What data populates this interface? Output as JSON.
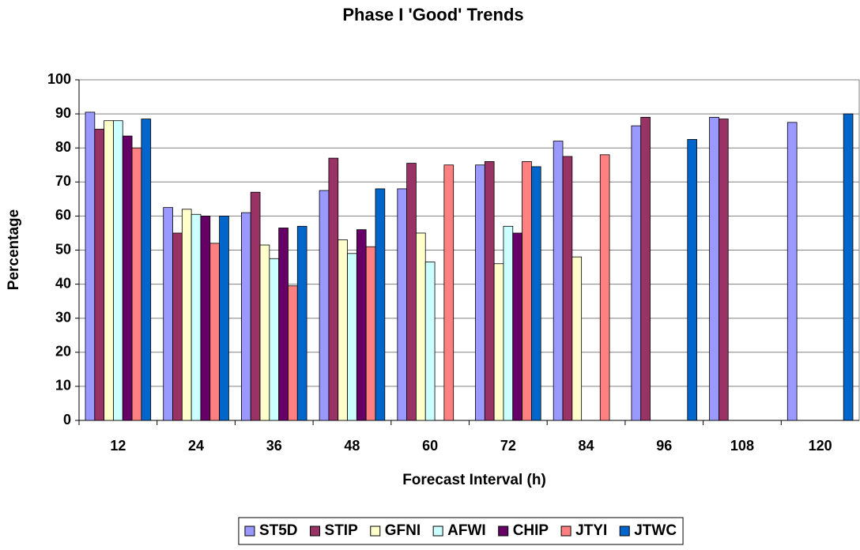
{
  "chart_data": {
    "type": "bar",
    "title": "Phase I 'Good' Trends",
    "x_label": "Forecast Interval (h)",
    "y_label": "Percentage",
    "categories": [
      "12",
      "24",
      "36",
      "48",
      "60",
      "72",
      "84",
      "96",
      "108",
      "120"
    ],
    "series": [
      {
        "name": "ST5D",
        "color": "#9999ff",
        "values": [
          90.5,
          62.5,
          61,
          67.5,
          68,
          75,
          82,
          86.5,
          89,
          87.5
        ]
      },
      {
        "name": "STIP",
        "color": "#993366",
        "values": [
          85.5,
          55,
          67,
          77,
          75.5,
          76,
          77.5,
          89,
          88.5,
          null
        ]
      },
      {
        "name": "GFNI",
        "color": "#ffffcc",
        "values": [
          88,
          62,
          51.5,
          53,
          55,
          46,
          48,
          null,
          null,
          null
        ]
      },
      {
        "name": "AFWI",
        "color": "#ccffff",
        "values": [
          88,
          60.5,
          47.5,
          49,
          46.5,
          57,
          null,
          null,
          null,
          null
        ]
      },
      {
        "name": "CHIP",
        "color": "#660066",
        "values": [
          83.5,
          60,
          56.5,
          56,
          null,
          55,
          null,
          null,
          null,
          null
        ]
      },
      {
        "name": "JTYI",
        "color": "#ff8080",
        "values": [
          80,
          52,
          39.5,
          51,
          75,
          76,
          78,
          null,
          null,
          null
        ]
      },
      {
        "name": "JTWC",
        "color": "#0066cc",
        "values": [
          88.5,
          60,
          57,
          68,
          null,
          74.5,
          null,
          82.5,
          null,
          90
        ]
      }
    ],
    "ylim": [
      0,
      100
    ],
    "yticks": [
      0,
      10,
      20,
      30,
      40,
      50,
      60,
      70,
      80,
      90,
      100
    ],
    "grid": true,
    "legend": "bottom"
  }
}
